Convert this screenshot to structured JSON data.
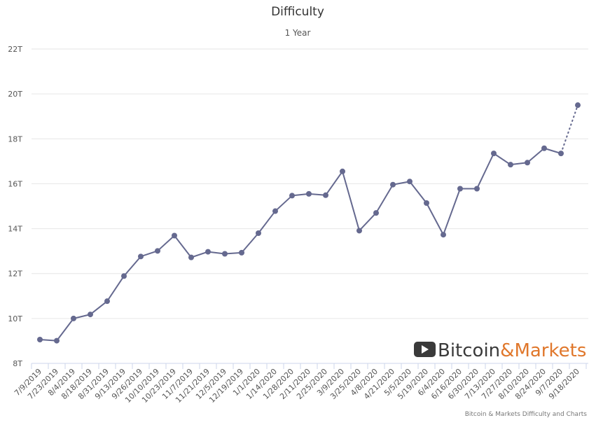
{
  "chart_data": {
    "type": "line",
    "title": "Difficulty",
    "subtitle": "1 Year",
    "xlabel": "",
    "ylabel": "",
    "ylim": [
      8,
      22
    ],
    "y_ticks": [
      "8T",
      "10T",
      "12T",
      "14T",
      "16T",
      "18T",
      "20T",
      "22T"
    ],
    "y_unit": "T",
    "grid": "horizontal",
    "categories": [
      "7/9/2019",
      "7/23/2019",
      "8/4/2019",
      "8/18/2019",
      "8/31/2019",
      "9/13/2019",
      "9/26/2019",
      "10/10/2019",
      "10/23/2019",
      "11/7/2019",
      "11/21/2019",
      "12/5/2019",
      "12/19/2019",
      "1/1/2020",
      "1/14/2020",
      "1/28/2020",
      "2/11/2020",
      "2/25/2020",
      "3/9/2020",
      "3/25/2020",
      "4/8/2020",
      "4/21/2020",
      "5/5/2020",
      "5/19/2020",
      "6/4/2020",
      "6/16/2020",
      "6/30/2020",
      "7/13/2020",
      "7/27/2020",
      "8/10/2020",
      "8/24/2020",
      "9/7/2020",
      "9/18/2020"
    ],
    "series": [
      {
        "values": [
          9.06,
          9.01,
          10.0,
          10.18,
          10.77,
          11.89,
          12.76,
          13.01,
          13.69,
          12.72,
          12.97,
          12.88,
          12.93,
          13.8,
          14.78,
          15.47,
          15.55,
          15.49,
          16.55,
          13.91,
          14.7,
          15.96,
          16.1,
          15.14,
          13.73,
          15.78,
          15.78,
          17.35,
          16.85,
          16.94,
          17.58,
          17.35,
          19.5
        ],
        "projected_from_index": 31,
        "color": "#65698f"
      }
    ],
    "watermark": {
      "part1": "Bitcoin",
      "part2": "&Markets",
      "icon": "play-icon",
      "accent": "#e0772b"
    },
    "credit": "Bitcoin & Markets Difficulty and Charts"
  }
}
